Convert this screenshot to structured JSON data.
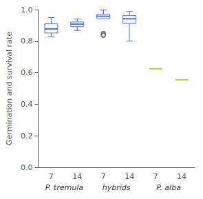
{
  "chart_data": {
    "type": "boxplot",
    "categories": [
      "7",
      "14",
      "7",
      "14",
      "7",
      "14"
    ],
    "species": [
      "P. tremula",
      "P. tremula",
      "hybrids",
      "hybrids",
      "P. alba",
      "P. alba"
    ],
    "ylabel": "Germination and survival rate",
    "ylim": [
      0.0,
      1.0
    ],
    "yticks": [
      {
        "value": 0.0,
        "label": "0.0"
      },
      0.2,
      0.4,
      0.6,
      0.8,
      {
        "value": 1.0,
        "label": "1.0"
      }
    ],
    "boxes": [
      {
        "q1": 0.852,
        "median": 0.878,
        "q3": 0.91,
        "whislo": 0.828,
        "whishi": 0.95,
        "fliers": []
      },
      {
        "q1": 0.892,
        "median": 0.908,
        "q3": 0.922,
        "whislo": 0.868,
        "whishi": 0.94,
        "fliers": []
      },
      {
        "q1": 0.942,
        "median": 0.958,
        "q3": 0.97,
        "whislo": 0.998,
        "whishi": 0.998,
        "fliers": [
          0.848,
          0.838
        ]
      },
      {
        "q1": 0.912,
        "median": 0.942,
        "q3": 0.962,
        "whislo": 0.8,
        "whishi": 0.988,
        "fliers": []
      },
      {
        "median": 0.625
      },
      {
        "median": 0.555
      }
    ]
  }
}
